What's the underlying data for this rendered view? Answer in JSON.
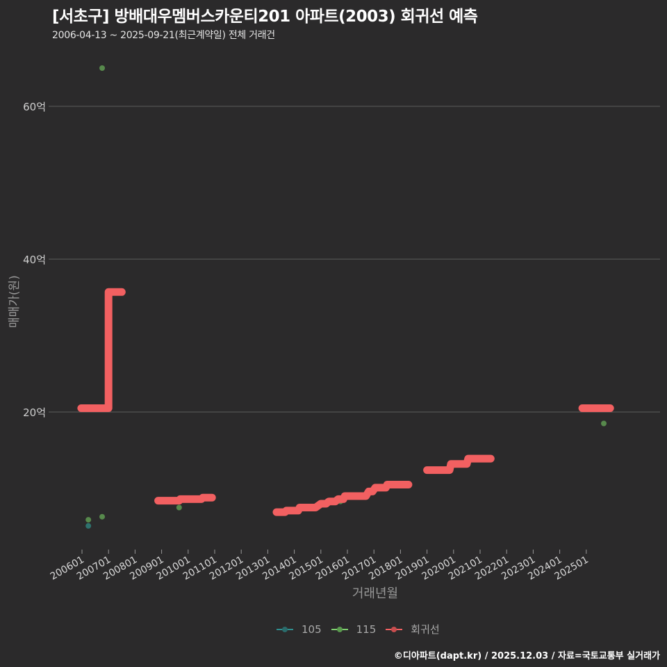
{
  "header": {
    "title": "[서초구] 방배대우멤버스카운티201 아파트(2003) 회귀선 예측",
    "subtitle": "2006-04-13 ~ 2025-09-21(최근계약일) 전체 거래건"
  },
  "footer": {
    "credit": "©디아파트(dapt.kr) / 2025.12.03 / 자료=국토교통부 실거래가"
  },
  "colors": {
    "background": "#2b2a2b",
    "grid": "#5e5e5e",
    "regression": "#f26061",
    "series_105": "#2f8f8f",
    "series_115": "#6fbf5f"
  },
  "chart_data": {
    "type": "scatter",
    "title": "[서초구] 방배대우멤버스카운티201 아파트(2003) 회귀선 예측",
    "subtitle": "2006-04-13 ~ 2025-09-21(최근계약일) 전체 거래건",
    "xlabel": "거래년월",
    "ylabel": "매매가(원)",
    "x_ticks": [
      "200601",
      "200701",
      "200801",
      "200901",
      "201001",
      "201101",
      "201201",
      "201301",
      "201401",
      "201501",
      "201601",
      "201701",
      "201801",
      "201901",
      "202001",
      "202101",
      "202201",
      "202301",
      "202401",
      "202501"
    ],
    "y_ticks": [
      {
        "value": 20,
        "label": "20억"
      },
      {
        "value": 40,
        "label": "40억"
      },
      {
        "value": 60,
        "label": "60억"
      }
    ],
    "ylim": [
      0,
      65
    ],
    "grid": true,
    "legend_position": "bottom",
    "legend": [
      "105",
      "115",
      "회귀선"
    ],
    "series": [
      {
        "name": "105",
        "type": "scatter",
        "points": [
          {
            "x": 2006.24,
            "y": 5.1
          }
        ]
      },
      {
        "name": "115",
        "type": "scatter",
        "points": [
          {
            "x": 2006.24,
            "y": 5.9
          },
          {
            "x": 2006.76,
            "y": 6.3
          },
          {
            "x": 2006.76,
            "y": 65.0
          },
          {
            "x": 2009.66,
            "y": 7.5
          },
          {
            "x": 2015.74,
            "y": 8.3
          },
          {
            "x": 2025.66,
            "y": 18.5
          }
        ]
      },
      {
        "name": "회귀선",
        "type": "step-line",
        "segments": [
          [
            {
              "x": 2005.97,
              "y": 20.5
            },
            {
              "x": 2007.0,
              "y": 20.5
            },
            {
              "x": 2007.0,
              "y": 35.7
            },
            {
              "x": 2007.5,
              "y": 35.7
            }
          ],
          [
            {
              "x": 2008.87,
              "y": 8.4
            },
            {
              "x": 2009.66,
              "y": 8.4
            },
            {
              "x": 2009.7,
              "y": 8.6
            },
            {
              "x": 2010.5,
              "y": 8.6
            },
            {
              "x": 2010.55,
              "y": 8.8
            },
            {
              "x": 2010.9,
              "y": 8.8
            }
          ],
          [
            {
              "x": 2013.33,
              "y": 6.9
            },
            {
              "x": 2013.65,
              "y": 6.9
            },
            {
              "x": 2013.7,
              "y": 7.1
            },
            {
              "x": 2014.15,
              "y": 7.1
            },
            {
              "x": 2014.2,
              "y": 7.5
            },
            {
              "x": 2014.8,
              "y": 7.5
            },
            {
              "x": 2015.0,
              "y": 8.0
            },
            {
              "x": 2015.2,
              "y": 8.0
            },
            {
              "x": 2015.3,
              "y": 8.3
            },
            {
              "x": 2015.55,
              "y": 8.3
            },
            {
              "x": 2015.65,
              "y": 8.6
            },
            {
              "x": 2015.85,
              "y": 8.6
            },
            {
              "x": 2015.9,
              "y": 9.0
            },
            {
              "x": 2016.7,
              "y": 9.0
            },
            {
              "x": 2016.8,
              "y": 9.6
            },
            {
              "x": 2016.95,
              "y": 9.6
            },
            {
              "x": 2017.05,
              "y": 10.1
            },
            {
              "x": 2017.45,
              "y": 10.1
            },
            {
              "x": 2017.5,
              "y": 10.5
            },
            {
              "x": 2018.3,
              "y": 10.5
            }
          ],
          [
            {
              "x": 2019.0,
              "y": 12.4
            },
            {
              "x": 2019.85,
              "y": 12.4
            },
            {
              "x": 2019.9,
              "y": 13.2
            },
            {
              "x": 2020.5,
              "y": 13.2
            },
            {
              "x": 2020.55,
              "y": 13.9
            },
            {
              "x": 2021.4,
              "y": 13.9
            }
          ],
          [
            {
              "x": 2024.85,
              "y": 20.5
            },
            {
              "x": 2025.9,
              "y": 20.5
            }
          ]
        ]
      }
    ]
  },
  "legend": {
    "items": [
      {
        "label": "105",
        "color": "#2f8f8f"
      },
      {
        "label": "115",
        "color": "#6fbf5f"
      },
      {
        "label": "회귀선",
        "color": "#f26061"
      }
    ]
  }
}
